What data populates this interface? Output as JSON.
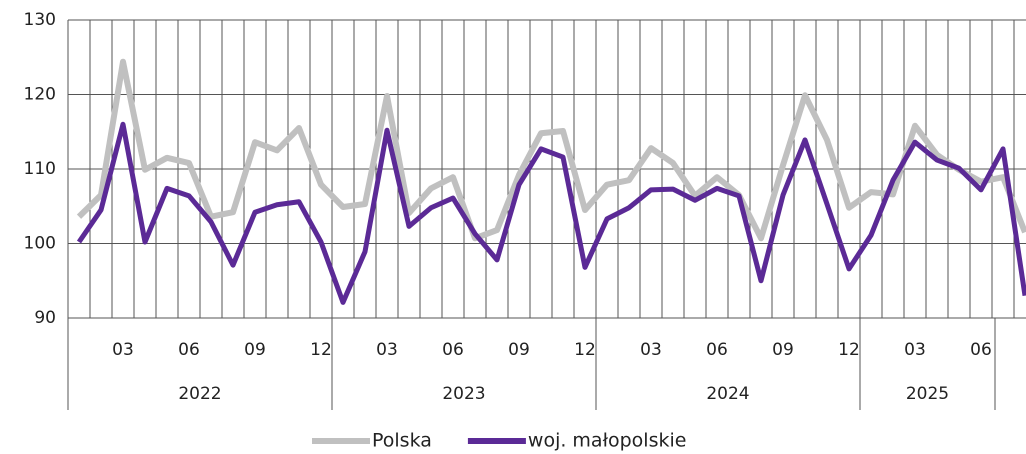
{
  "chart_data": {
    "type": "line",
    "categories": [
      null,
      null,
      "03",
      null,
      null,
      "06",
      null,
      null,
      "09",
      null,
      null,
      "12",
      null,
      null,
      "03",
      null,
      null,
      "06",
      null,
      null,
      "09",
      null,
      null,
      "12",
      null,
      null,
      "03",
      null,
      null,
      "06",
      null,
      null,
      "09",
      null,
      null,
      "12",
      null,
      null,
      "03",
      null,
      null,
      "06",
      null,
      null
    ],
    "years": [
      "2022",
      "2023",
      "2024",
      "2025"
    ],
    "series": [
      {
        "name": "Polska",
        "color": "#c0c0c0",
        "values": [
          103.6,
          106.5,
          124.4,
          109.9,
          111.5,
          110.8,
          103.6,
          104.2,
          113.6,
          112.5,
          115.5,
          107.9,
          104.9,
          105.3,
          119.8,
          104.1,
          107.4,
          108.9,
          100.7,
          101.8,
          109.2,
          114.8,
          115.1,
          104.5,
          107.9,
          108.5,
          112.8,
          110.8,
          106.4,
          108.9,
          106.5,
          100.7,
          110.5,
          119.9,
          113.9,
          104.8,
          106.9,
          106.6,
          115.8,
          111.9,
          109.9,
          108.3,
          108.9,
          101.5
        ]
      },
      {
        "name": "woj. małopolskie",
        "color": "#5b2a96",
        "values": [
          100.2,
          104.5,
          116.0,
          100.2,
          107.4,
          106.4,
          102.9,
          97.1,
          104.2,
          105.2,
          105.6,
          100.2,
          92.1,
          98.9,
          115.2,
          102.3,
          104.8,
          106.1,
          101.3,
          97.8,
          107.9,
          112.7,
          111.6,
          96.8,
          103.3,
          104.8,
          107.2,
          107.3,
          105.8,
          107.4,
          106.4,
          95.0,
          106.5,
          113.9,
          105.3,
          96.6,
          101.1,
          108.5,
          113.6,
          111.2,
          110.1,
          107.2,
          112.7,
          93.0
        ]
      }
    ],
    "ylim": [
      90,
      130
    ],
    "yticks": [
      90,
      100,
      110,
      120,
      130
    ],
    "grid": true,
    "legend": "bottom"
  }
}
